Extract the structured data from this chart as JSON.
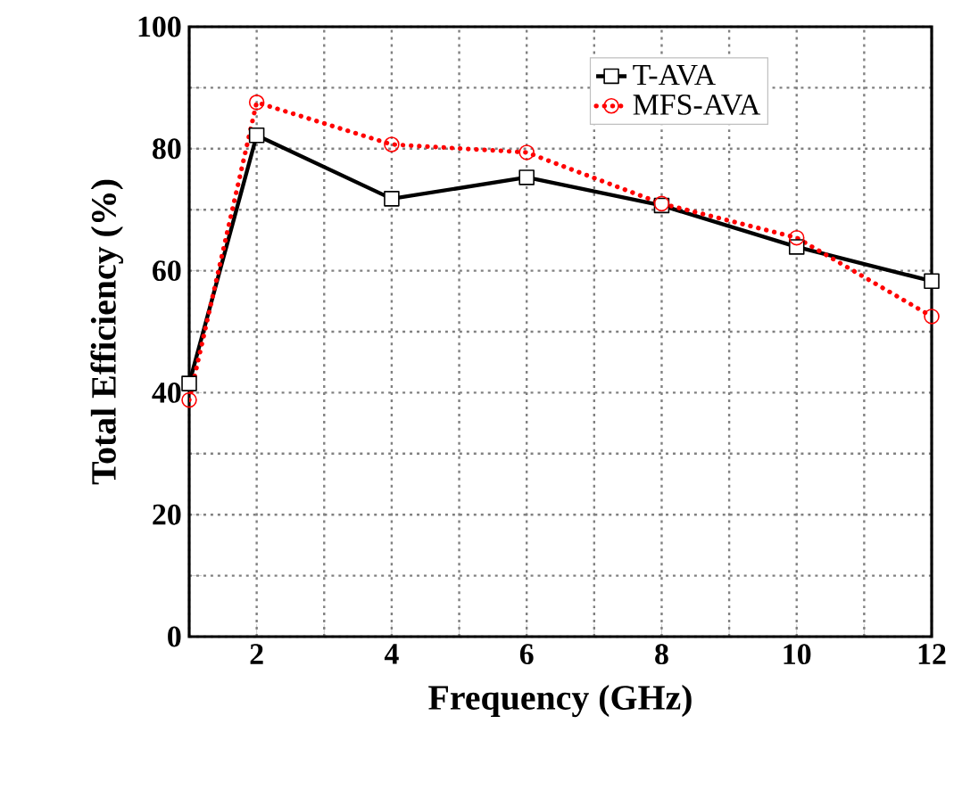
{
  "chart_data": {
    "type": "line",
    "xlabel": "Frequency (GHz)",
    "ylabel": "Total Efficiency (%)",
    "x": [
      1,
      2,
      4,
      6,
      8,
      10,
      12
    ],
    "series": [
      {
        "name": "T-AVA",
        "color": "#000000",
        "marker": "square",
        "line_style": "solid",
        "values": [
          41.5,
          82.2,
          71.8,
          75.3,
          70.7,
          63.9,
          58.3
        ]
      },
      {
        "name": "MFS-AVA",
        "color": "#ff0000",
        "marker": "circle",
        "line_style": "dotted",
        "values": [
          38.8,
          87.6,
          80.7,
          79.4,
          71,
          65.4,
          52.5
        ]
      }
    ],
    "xlim": [
      1,
      12
    ],
    "ylim": [
      0,
      100
    ],
    "xticks": [
      {
        "value": 1,
        "label": null
      },
      2,
      {
        "value": 3,
        "label": null
      },
      4,
      {
        "value": 5,
        "label": null
      },
      6,
      {
        "value": 7,
        "label": null
      },
      8,
      {
        "value": 9,
        "label": null
      },
      10,
      {
        "value": 11,
        "label": null
      },
      12
    ],
    "yticks": [
      0,
      {
        "value": 10,
        "label": null
      },
      20,
      {
        "value": 30,
        "label": null
      },
      40,
      {
        "value": 50,
        "label": null
      },
      60,
      {
        "value": 70,
        "label": null
      },
      80,
      {
        "value": 90,
        "label": null
      },
      100
    ],
    "grid": true,
    "legend": "top right"
  }
}
